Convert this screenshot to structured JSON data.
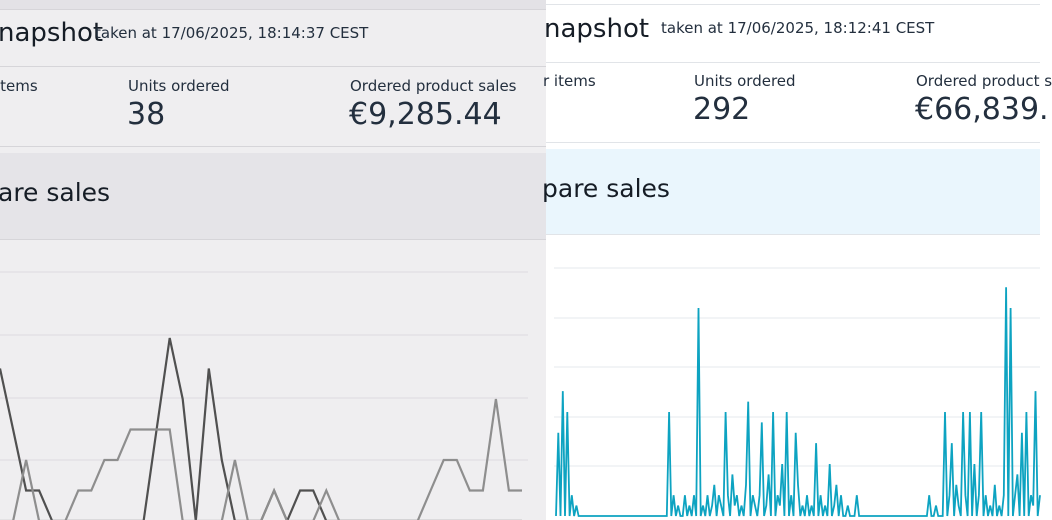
{
  "left": {
    "title": "napshot",
    "taken": "taken at 17/06/2025, 18:14:37 CEST",
    "metrics": [
      {
        "label": "items",
        "value": ""
      },
      {
        "label": "Units ordered",
        "value": "38"
      },
      {
        "label": "Ordered product sales",
        "value": "€9,285.44"
      }
    ],
    "compare_title": "are sales",
    "colors": {
      "background": "#efeef0",
      "series_dark": "#505050",
      "series_light": "#8e8e8e",
      "gridline": "#dcdbdf"
    }
  },
  "right": {
    "title": "napshot",
    "taken": "taken at 17/06/2025, 18:12:41 CEST",
    "metrics": [
      {
        "label": "r items",
        "value": ""
      },
      {
        "label": "Units ordered",
        "value": "292"
      },
      {
        "label": "Ordered product s",
        "value": "€66,839."
      }
    ],
    "compare_title": "pare sales",
    "colors": {
      "background": "#ffffff",
      "band": "#eaf6fd",
      "series": "#0da3c1",
      "gridline": "#e6e8ec"
    }
  },
  "chart_data": [
    {
      "type": "line",
      "series": [
        {
          "values": [
            5,
            3,
            1,
            1,
            0,
            0,
            0,
            0,
            0,
            0,
            0,
            0,
            3,
            6,
            4,
            0,
            5,
            2,
            0,
            0,
            0,
            1,
            0,
            1,
            1,
            0,
            0,
            0,
            0,
            0,
            0,
            0,
            0,
            0,
            0,
            0,
            0,
            0,
            0,
            0,
            0
          ]
        },
        {
          "values": [
            0,
            0,
            2,
            0,
            0,
            0,
            1,
            1,
            2,
            2,
            3,
            3,
            3,
            3,
            0,
            0,
            0,
            0,
            2,
            0,
            0,
            1,
            0,
            0,
            0,
            1,
            0,
            0,
            0,
            0,
            0,
            0,
            0,
            1,
            2,
            2,
            1,
            1,
            4,
            1,
            1
          ]
        }
      ]
    },
    {
      "type": "line",
      "series": [
        {
          "values": [
            0,
            8,
            0,
            12,
            0,
            10,
            0,
            2,
            0,
            1,
            0,
            0,
            0,
            0,
            0,
            0,
            0,
            0,
            0,
            0,
            0,
            0,
            0,
            0,
            0,
            0,
            0,
            0,
            0,
            0,
            0,
            0,
            0,
            0,
            0,
            0,
            0,
            0,
            0,
            0,
            0,
            0,
            0,
            0,
            0,
            0,
            0,
            0,
            0,
            0,
            10,
            0,
            2,
            0,
            1,
            0,
            0,
            2,
            0,
            1,
            0,
            2,
            0,
            20,
            0,
            1,
            0,
            2,
            0,
            1,
            3,
            0,
            2,
            1,
            0,
            10,
            2,
            0,
            4,
            1,
            2,
            0,
            1,
            0,
            3,
            11,
            0,
            2,
            1,
            0,
            2,
            9,
            0,
            1,
            4,
            0,
            10,
            0,
            2,
            1,
            5,
            0,
            10,
            0,
            2,
            0,
            8,
            3,
            0,
            1,
            0,
            2,
            0,
            1,
            0,
            7,
            0,
            2,
            0,
            1,
            0,
            5,
            0,
            1,
            3,
            0,
            2,
            0,
            0,
            1,
            0,
            0,
            0,
            2,
            0,
            0,
            0,
            0,
            0,
            0,
            0,
            0,
            0,
            0,
            0,
            0,
            0,
            0,
            0,
            0,
            0,
            0,
            0,
            0,
            0,
            0,
            0,
            0,
            0,
            0,
            0,
            0,
            0,
            0,
            0,
            2,
            0,
            0,
            1,
            0,
            0,
            0,
            10,
            0,
            2,
            7,
            0,
            3,
            1,
            0,
            10,
            2,
            0,
            10,
            0,
            5,
            0,
            2,
            10,
            0,
            2,
            0,
            1,
            0,
            3,
            0,
            1,
            0,
            2,
            22,
            0,
            20,
            0,
            2,
            4,
            0,
            8,
            0,
            10,
            0,
            2,
            1,
            12,
            0,
            2
          ]
        }
      ]
    }
  ]
}
